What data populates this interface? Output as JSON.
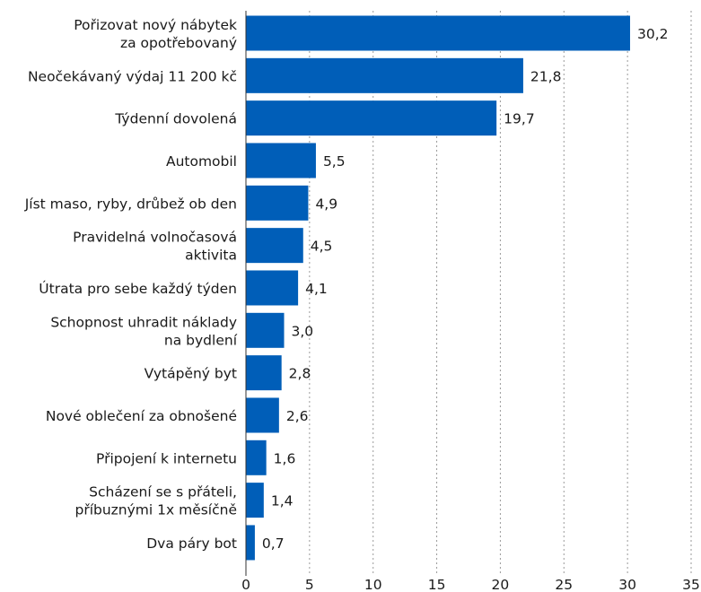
{
  "chart_data": {
    "type": "bar",
    "orientation": "horizontal",
    "title": "",
    "xlabel": "",
    "ylabel": "",
    "categories": [
      "Pořizovat nový nábytek za opotřebovaný",
      "Neočekávaný výdaj 11 200 kč",
      "Týdenní dovolená",
      "Automobil",
      "Jíst maso, ryby, drůbež ob den",
      "Pravidelná volnočasová aktivita",
      "Útrata pro sebe každý týden",
      "Schopnost uhradit náklady na bydlení",
      "Vytápěný byt",
      "Nové oblečení za obnošené",
      "Připojení k internetu",
      "Scházení se s přáteli, příbuznými 1x měsíčně",
      "Dva páry bot"
    ],
    "category_lines": [
      [
        "Pořizovat nový nábytek",
        "za opotřebovaný"
      ],
      [
        "Neočekávaný výdaj 11 200 kč"
      ],
      [
        "Týdenní dovolená"
      ],
      [
        "Automobil"
      ],
      [
        "Jíst maso, ryby, drůbež ob den"
      ],
      [
        "Pravidelná volnočasová",
        "aktivita"
      ],
      [
        "Útrata pro sebe každý týden"
      ],
      [
        "Schopnost uhradit náklady",
        "na bydlení"
      ],
      [
        "Vytápěný byt"
      ],
      [
        "Nové oblečení za obnošené"
      ],
      [
        "Připojení k internetu"
      ],
      [
        "Scházení se s přáteli,",
        "příbuznými 1x měsíčně"
      ],
      [
        "Dva páry bot"
      ]
    ],
    "values": [
      30.2,
      21.8,
      19.7,
      5.5,
      4.9,
      4.5,
      4.1,
      3.0,
      2.8,
      2.6,
      1.6,
      1.4,
      0.7
    ],
    "value_labels": [
      "30,2",
      "21,8",
      "19,7",
      "5,5",
      "4,9",
      "4,5",
      "4,1",
      "3,0",
      "2,8",
      "2,6",
      "1,6",
      "1,4",
      "0,7"
    ],
    "xlim": [
      0,
      35
    ],
    "xticks": [
      0,
      5,
      10,
      15,
      20,
      25,
      30,
      35
    ],
    "grid": "vertical dashed",
    "colors": {
      "bar": "#005eb8",
      "grid": "#9a9a9a",
      "text": "#1a1a1a"
    }
  }
}
